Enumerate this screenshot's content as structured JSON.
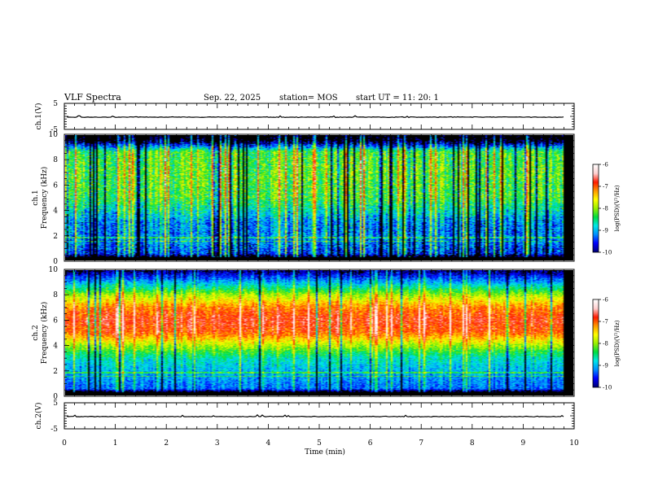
{
  "header": {
    "title": "VLF Spectra",
    "date": "Sep. 22, 2025",
    "station": "station= MOS",
    "start": "start  UT =   11: 20: 1"
  },
  "colors": {
    "colormap": [
      "#00007a",
      "#0000ff",
      "#0090ff",
      "#00e8e8",
      "#00dd40",
      "#9af000",
      "#ffff00",
      "#ff9a00",
      "#ff1a00",
      "#ffd0d0",
      "#ffffff"
    ],
    "trace": "#000000",
    "gaps": "#000000"
  },
  "chart_data": [
    {
      "type": "line",
      "name": "ch1-waveform",
      "ylabel": "ch.1(V)",
      "ylim": [
        -5,
        5
      ],
      "yticks": [
        "5",
        "-5"
      ],
      "y_level": -0.3,
      "xlim": [
        0,
        10
      ]
    },
    {
      "type": "heatmap",
      "name": "ch1-spectrogram",
      "ylabel_top": "ch.1",
      "ylabel": "Frequency (kHz)",
      "ylim": [
        0,
        10
      ],
      "yticks": [
        "0",
        "2",
        "4",
        "6",
        "8",
        "10"
      ],
      "xlim": [
        0,
        10
      ],
      "x_data_end": 9.8,
      "profile": [
        [
          0.2,
          -10.5
        ],
        [
          0.5,
          -9.5
        ],
        [
          1.5,
          -9.2
        ],
        [
          3.0,
          -9.2
        ],
        [
          4.0,
          -8.7
        ],
        [
          5.0,
          -8.3
        ],
        [
          7.0,
          -8.2
        ],
        [
          8.7,
          -8.3
        ],
        [
          9.0,
          -9.0
        ],
        [
          9.6,
          -10.3
        ],
        [
          10,
          -10.6
        ]
      ],
      "colorbar": {
        "label": "log(PSD)(V²/Hz)",
        "range": [
          -10,
          -6
        ],
        "ticks": [
          "-6",
          "-7",
          "-8",
          "-9",
          "-10"
        ]
      }
    },
    {
      "type": "heatmap",
      "name": "ch2-spectrogram",
      "ylabel_top": "ch.2",
      "ylabel": "Frequency (kHz)",
      "ylim": [
        0,
        10
      ],
      "yticks": [
        "0",
        "2",
        "4",
        "6",
        "8",
        "10"
      ],
      "xlim": [
        0,
        10
      ],
      "x_data_end": 9.8,
      "profile": [
        [
          0.2,
          -10.5
        ],
        [
          0.5,
          -9.3
        ],
        [
          2.0,
          -9.0
        ],
        [
          3.0,
          -8.7
        ],
        [
          4.0,
          -7.9
        ],
        [
          5.0,
          -7.0
        ],
        [
          6.0,
          -6.8
        ],
        [
          7.0,
          -7.1
        ],
        [
          8.0,
          -7.9
        ],
        [
          9.0,
          -9.0
        ],
        [
          9.7,
          -9.7
        ],
        [
          10,
          -10.0
        ]
      ],
      "colorbar": {
        "label": "log(PSD)(V²/Hz)",
        "range": [
          -10,
          -6
        ],
        "ticks": [
          "-6",
          "-7",
          "-8",
          "-9",
          "-10"
        ]
      }
    },
    {
      "type": "line",
      "name": "ch2-waveform",
      "ylabel": "ch.2(V)",
      "ylim": [
        -5,
        5
      ],
      "yticks": [
        "5",
        "-5"
      ],
      "y_level": -0.3,
      "xlim": [
        0,
        10
      ]
    }
  ],
  "xaxis": {
    "label": "Time  (min)",
    "ticks": [
      "0",
      "1",
      "2",
      "3",
      "4",
      "5",
      "6",
      "7",
      "8",
      "9",
      "10"
    ]
  }
}
